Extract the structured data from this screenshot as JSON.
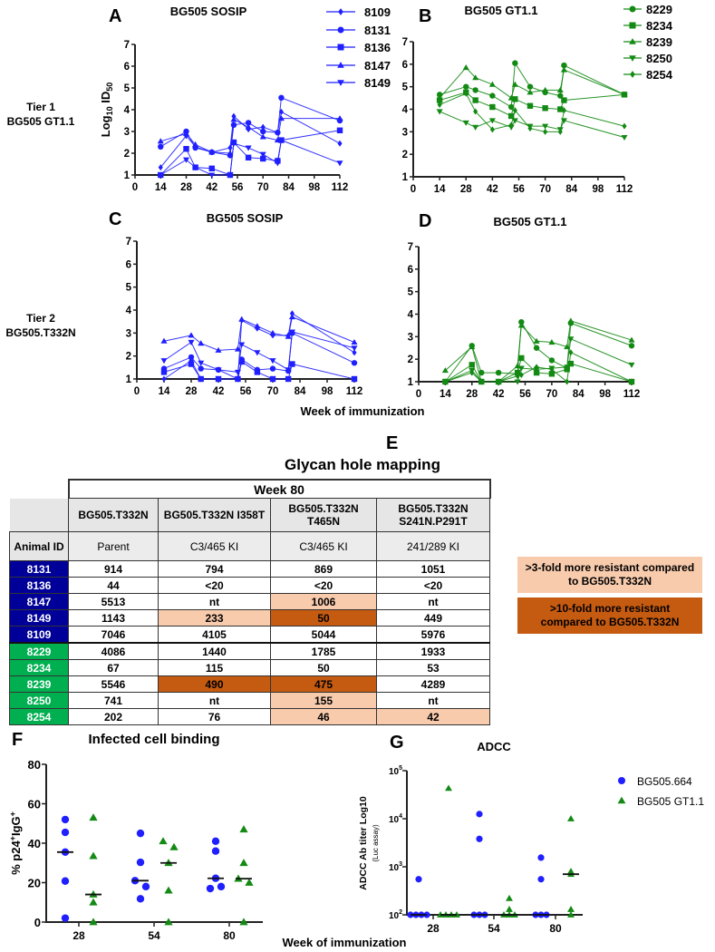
{
  "row_labels": {
    "tier1": [
      "Tier 1",
      "BG505 GT1.1"
    ],
    "tier2": [
      "Tier 2",
      "BG505.T332N"
    ]
  },
  "shared_xlabel": "Week of immunization",
  "colors": {
    "blue": "#1f1fff",
    "green": "#138a13",
    "navy": "#000099",
    "id_green": "#00b050",
    "light": "#f8cbad",
    "dark": "#c55a11"
  },
  "chart_data": [
    {
      "panel": "A",
      "type": "line",
      "title": "BG505 SOSIP",
      "ylabel": {
        "base": "Log",
        "sub1": "10",
        "mid": " ID",
        "sub2": "50"
      },
      "xlim": [
        0,
        112
      ],
      "ylim": [
        1,
        7
      ],
      "xticks": [
        "0",
        "14",
        "28",
        "42",
        "56",
        "70",
        "84",
        "98",
        "112"
      ],
      "yticks": [
        "1",
        "2",
        "3",
        "4",
        "5",
        "6",
        "7"
      ],
      "x": [
        14,
        28,
        33,
        42,
        52,
        54,
        62,
        70,
        78,
        80,
        112
      ],
      "color": "#1f1fff",
      "series": [
        {
          "name": "8109",
          "marker": "diamond",
          "values": [
            1.35,
            2.8,
            2.3,
            2.05,
            2.25,
            3.7,
            3.1,
            3.2,
            2.95,
            3.9,
            2.45
          ]
        },
        {
          "name": "8131",
          "marker": "circle",
          "values": [
            2.3,
            3.0,
            2.25,
            2.05,
            1.9,
            3.3,
            3.4,
            3.0,
            2.95,
            4.55,
            3.5
          ]
        },
        {
          "name": "8136",
          "marker": "square",
          "values": [
            1.0,
            2.2,
            1.35,
            1.3,
            1.0,
            2.5,
            1.8,
            1.75,
            1.65,
            2.6,
            3.05
          ]
        },
        {
          "name": "8147",
          "marker": "triangle-up",
          "values": [
            2.55,
            2.9,
            2.4,
            2.05,
            2.0,
            3.55,
            3.2,
            2.75,
            2.6,
            3.6,
            3.6
          ]
        },
        {
          "name": "8149",
          "marker": "triangle-down",
          "values": [
            1.0,
            1.7,
            1.35,
            1.0,
            1.0,
            2.45,
            2.25,
            1.95,
            1.55,
            2.6,
            1.55
          ]
        }
      ]
    },
    {
      "panel": "B",
      "type": "line",
      "title": "BG505 GT1.1",
      "xlim": [
        0,
        112
      ],
      "ylim": [
        1,
        7
      ],
      "xticks": [
        "0",
        "14",
        "28",
        "42",
        "56",
        "70",
        "84",
        "98",
        "112"
      ],
      "yticks": [
        "1",
        "2",
        "3",
        "4",
        "5",
        "6",
        "7"
      ],
      "x": [
        14,
        28,
        33,
        42,
        52,
        54,
        62,
        70,
        78,
        80,
        112
      ],
      "color": "#138a13",
      "series": [
        {
          "name": "8229",
          "marker": "circle",
          "values": [
            4.65,
            5.0,
            4.85,
            4.6,
            4.1,
            6.05,
            5.0,
            4.75,
            4.6,
            5.95,
            4.65
          ]
        },
        {
          "name": "8234",
          "marker": "square",
          "values": [
            4.4,
            4.75,
            4.4,
            4.1,
            3.7,
            4.45,
            4.15,
            4.05,
            4.0,
            4.4,
            4.65
          ]
        },
        {
          "name": "8239",
          "marker": "triangle-up",
          "values": [
            4.5,
            5.85,
            5.4,
            5.1,
            4.5,
            5.1,
            4.75,
            4.85,
            4.85,
            5.75,
            4.65
          ]
        },
        {
          "name": "8250",
          "marker": "triangle-down",
          "values": [
            3.9,
            3.4,
            3.2,
            3.5,
            3.2,
            3.5,
            3.25,
            3.25,
            3.1,
            3.5,
            2.75
          ]
        },
        {
          "name": "8254",
          "marker": "diamond",
          "values": [
            4.2,
            4.7,
            3.9,
            3.1,
            3.3,
            3.95,
            3.15,
            3.0,
            3.0,
            3.95,
            3.25
          ]
        }
      ]
    },
    {
      "panel": "C",
      "type": "line",
      "title": "BG505 SOSIP",
      "xlim": [
        0,
        112
      ],
      "ylim": [
        1,
        7
      ],
      "xticks": [
        "0",
        "14",
        "28",
        "42",
        "56",
        "70",
        "84",
        "98",
        "112"
      ],
      "yticks": [
        "1",
        "2",
        "3",
        "4",
        "5",
        "6",
        "7"
      ],
      "x": [
        14,
        28,
        33,
        42,
        52,
        54,
        62,
        70,
        78,
        80,
        112
      ],
      "color": "#1f1fff",
      "series": [
        {
          "name": "8109",
          "marker": "diamond",
          "values": [
            1.0,
            1.8,
            1.0,
            1.0,
            1.0,
            3.55,
            3.2,
            2.9,
            2.9,
            3.85,
            2.15
          ]
        },
        {
          "name": "8131",
          "marker": "circle",
          "values": [
            1.45,
            1.95,
            1.45,
            1.4,
            1.0,
            1.85,
            1.4,
            1.45,
            1.35,
            3.0,
            1.7
          ]
        },
        {
          "name": "8136",
          "marker": "square",
          "values": [
            1.3,
            1.65,
            1.0,
            1.0,
            1.0,
            1.75,
            1.3,
            1.0,
            1.0,
            1.65,
            1.0
          ]
        },
        {
          "name": "8147",
          "marker": "triangle-up",
          "values": [
            2.65,
            2.9,
            2.55,
            2.25,
            2.3,
            3.6,
            3.3,
            3.0,
            2.85,
            3.7,
            2.6
          ]
        },
        {
          "name": "8149",
          "marker": "triangle-down",
          "values": [
            1.8,
            2.6,
            1.7,
            1.4,
            1.3,
            2.5,
            2.15,
            1.8,
            1.4,
            3.05,
            2.35
          ]
        }
      ]
    },
    {
      "panel": "D",
      "type": "line",
      "title": "BG505 GT1.1",
      "xlim": [
        0,
        112
      ],
      "ylim": [
        1,
        7
      ],
      "xticks": [
        "0",
        "14",
        "28",
        "42",
        "56",
        "70",
        "84",
        "98",
        "112"
      ],
      "yticks": [
        "1",
        "2",
        "3",
        "4",
        "5",
        "6",
        "7"
      ],
      "x": [
        14,
        28,
        33,
        42,
        52,
        54,
        62,
        70,
        78,
        80,
        112
      ],
      "color": "#138a13",
      "series": [
        {
          "name": "8229",
          "marker": "circle",
          "values": [
            1.0,
            2.6,
            1.4,
            1.4,
            1.35,
            3.65,
            2.5,
            1.95,
            1.6,
            3.6,
            2.6
          ]
        },
        {
          "name": "8234",
          "marker": "square",
          "values": [
            1.0,
            1.75,
            1.0,
            1.0,
            1.4,
            2.05,
            1.4,
            1.35,
            1.55,
            1.8,
            1.0
          ]
        },
        {
          "name": "8239",
          "marker": "triangle-up",
          "values": [
            1.5,
            2.55,
            1.0,
            1.0,
            1.7,
            3.5,
            2.8,
            2.75,
            2.55,
            3.7,
            2.85
          ]
        },
        {
          "name": "8250",
          "marker": "triangle-down",
          "values": [
            1.0,
            1.5,
            1.0,
            1.0,
            1.0,
            1.6,
            1.55,
            1.6,
            1.65,
            2.9,
            1.75
          ]
        },
        {
          "name": "8254",
          "marker": "diamond",
          "values": [
            1.0,
            1.4,
            1.0,
            1.0,
            1.25,
            1.3,
            1.65,
            1.55,
            1.0,
            2.3,
            1.0
          ]
        }
      ]
    },
    {
      "panel": "F",
      "type": "scatter",
      "title": "Infected cell binding",
      "ylabel": {
        "base": "% p24",
        "sup1": "+",
        "mid": "IgG",
        "sup2": "+"
      },
      "xlabel": "Week of immunization",
      "categories": [
        "28",
        "54",
        "80"
      ],
      "ylim": [
        0,
        80
      ],
      "yticks": [
        "0",
        "20",
        "40",
        "60",
        "80"
      ],
      "series": [
        {
          "name": "BG505.664",
          "marker": "circle",
          "color": "#1f1fff",
          "values": [
            [
              52,
              45.5,
              35.5,
              20.8,
              2
            ],
            [
              45,
              30.3,
              21,
              18,
              11.8
            ],
            [
              41,
              36,
              22.2,
              18,
              17
            ]
          ],
          "medians": [
            35.5,
            21,
            22.2
          ]
        },
        {
          "name": "BG505 GT1.1",
          "marker": "triangle-up",
          "color": "#138a13",
          "values": [
            [
              53,
              33.5,
              14,
              10,
              0
            ],
            [
              41,
              38,
              30,
              16,
              0
            ],
            [
              47,
              30,
              22,
              20,
              0
            ]
          ],
          "medians": [
            14,
            30,
            22
          ]
        }
      ]
    },
    {
      "panel": "G",
      "type": "scatter",
      "title": "ADCC",
      "ylabel": {
        "main": "ADCC Ab titer Log10",
        "sub": "(Luc assay)"
      },
      "categories": [
        "28",
        "54",
        "80"
      ],
      "yscale": "log",
      "ylim": [
        100,
        100000
      ],
      "yticks": [
        {
          "base": "10",
          "exp": "2"
        },
        {
          "base": "10",
          "exp": "3"
        },
        {
          "base": "10",
          "exp": "4"
        },
        {
          "base": "10",
          "exp": "5"
        }
      ],
      "legend": "right",
      "series": [
        {
          "name": "BG505.664",
          "marker": "circle",
          "color": "#1f1fff",
          "values": [
            [
              550,
              100,
              100,
              100,
              100
            ],
            [
              12500,
              3800,
              100,
              100,
              100
            ],
            [
              1550,
              550,
              100,
              100,
              100
            ]
          ],
          "medians": [
            100,
            100,
            100
          ]
        },
        {
          "name": "BG505 GT1.1",
          "marker": "triangle-up",
          "color": "#138a13",
          "values": [
            [
              43000,
              100,
              100,
              100,
              100
            ],
            [
              220,
              130,
              100,
              100,
              100
            ],
            [
              10000,
              800,
              700,
              130,
              100
            ]
          ],
          "medians": [
            100,
            100,
            700
          ]
        }
      ]
    }
  ],
  "table": {
    "panel": "E",
    "title": "Glycan hole mapping",
    "week_header": "Week 80",
    "id_header": "Animal ID",
    "columns": [
      {
        "virus": [
          "BG505.T332N"
        ],
        "type": "Parent"
      },
      {
        "virus": [
          "BG505.T332N I358T"
        ],
        "type": "C3/465 KI"
      },
      {
        "virus": [
          "BG505.T332N",
          "T465N"
        ],
        "type": "C3/465 KI"
      },
      {
        "virus": [
          "BG505.T332N",
          "S241N.P291T"
        ],
        "type": "241/289 KI"
      }
    ],
    "rows": [
      {
        "id": "8131",
        "group": "SOSIP",
        "values": [
          "914",
          "794",
          "869",
          "1051"
        ],
        "flags": [
          "",
          "",
          "",
          ""
        ]
      },
      {
        "id": "8136",
        "group": "SOSIP",
        "values": [
          "44",
          "<20",
          "<20",
          "<20"
        ],
        "flags": [
          "",
          "",
          "",
          ""
        ]
      },
      {
        "id": "8147",
        "group": "SOSIP",
        "values": [
          "5513",
          "nt",
          "1006",
          "nt"
        ],
        "flags": [
          "",
          "",
          "light",
          ""
        ]
      },
      {
        "id": "8149",
        "group": "SOSIP",
        "values": [
          "1143",
          "233",
          "50",
          "449"
        ],
        "flags": [
          "",
          "light",
          "dark",
          ""
        ]
      },
      {
        "id": "8109",
        "group": "SOSIP",
        "values": [
          "7046",
          "4105",
          "5044",
          "5976"
        ],
        "flags": [
          "",
          "",
          "",
          ""
        ]
      },
      {
        "id": "8229",
        "group": "GT1.1",
        "values": [
          "4086",
          "1440",
          "1785",
          "1933"
        ],
        "flags": [
          "",
          "",
          "",
          ""
        ]
      },
      {
        "id": "8234",
        "group": "GT1.1",
        "values": [
          "67",
          "115",
          "50",
          "53"
        ],
        "flags": [
          "",
          "",
          "",
          ""
        ]
      },
      {
        "id": "8239",
        "group": "GT1.1",
        "values": [
          "5546",
          "490",
          "475",
          "4289"
        ],
        "flags": [
          "",
          "dark",
          "dark",
          ""
        ]
      },
      {
        "id": "8250",
        "group": "GT1.1",
        "values": [
          "741",
          "nt",
          "155",
          "nt"
        ],
        "flags": [
          "",
          "",
          "light",
          ""
        ]
      },
      {
        "id": "8254",
        "group": "GT1.1",
        "values": [
          "202",
          "76",
          "46",
          "42"
        ],
        "flags": [
          "",
          "",
          "light",
          "light"
        ]
      }
    ],
    "legend": [
      {
        "flag": "light",
        "text": ">3-fold more resistant compared to BG505.T332N"
      },
      {
        "flag": "dark",
        "text": ">10-fold more resistant compared to BG505.T332N"
      }
    ]
  }
}
